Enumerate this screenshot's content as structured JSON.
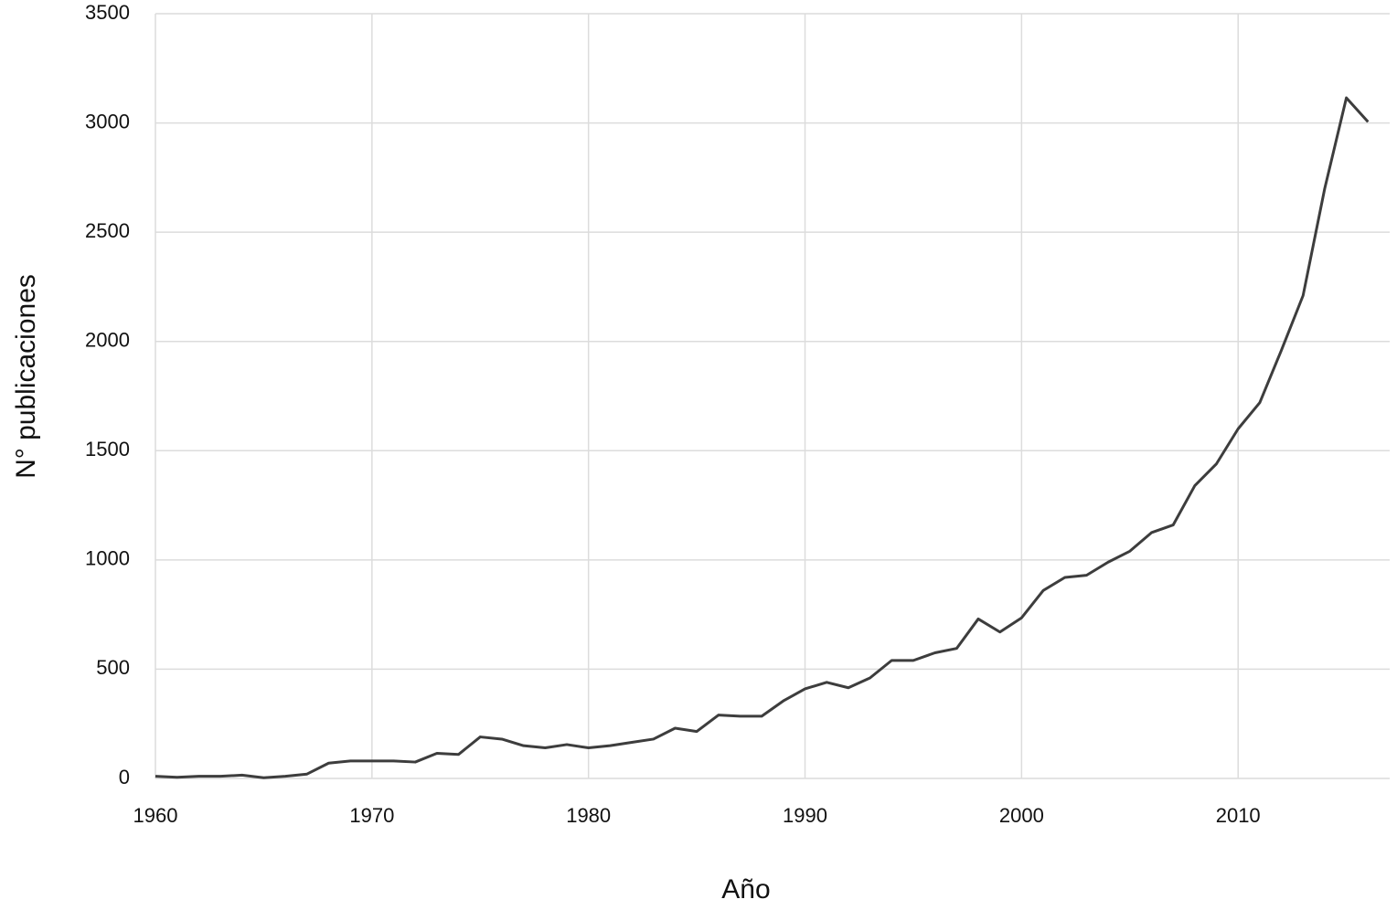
{
  "chart_data": {
    "type": "line",
    "x_label": "Año",
    "y_label": "N° publicaciones",
    "x": [
      1960,
      1961,
      1962,
      1963,
      1964,
      1965,
      1966,
      1967,
      1968,
      1969,
      1970,
      1971,
      1972,
      1973,
      1974,
      1975,
      1976,
      1977,
      1978,
      1979,
      1980,
      1981,
      1982,
      1983,
      1984,
      1985,
      1986,
      1987,
      1988,
      1989,
      1990,
      1991,
      1992,
      1993,
      1994,
      1995,
      1996,
      1997,
      1998,
      1999,
      2000,
      2001,
      2002,
      2003,
      2004,
      2005,
      2006,
      2007,
      2008,
      2009,
      2010,
      2011,
      2012,
      2013,
      2014,
      2015,
      2016
    ],
    "values": [
      10,
      5,
      10,
      10,
      15,
      3,
      10,
      20,
      70,
      80,
      80,
      80,
      75,
      115,
      110,
      190,
      180,
      150,
      140,
      155,
      140,
      150,
      165,
      180,
      230,
      215,
      290,
      285,
      285,
      355,
      410,
      440,
      415,
      460,
      540,
      540,
      575,
      595,
      730,
      670,
      735,
      860,
      920,
      930,
      990,
      1040,
      1125,
      1160,
      1340,
      1440,
      1600,
      1720,
      1960,
      2210,
      2700,
      3115,
      3005
    ],
    "color": "#3d3d3d",
    "xlim": [
      1960,
      2017
    ],
    "xticks": [
      1960,
      1970,
      1980,
      1990,
      2000,
      2010
    ],
    "ylim": [
      0,
      3500
    ],
    "yticks": [
      0,
      500,
      1000,
      1500,
      2000,
      2500,
      3000,
      3500
    ],
    "grid": true
  }
}
